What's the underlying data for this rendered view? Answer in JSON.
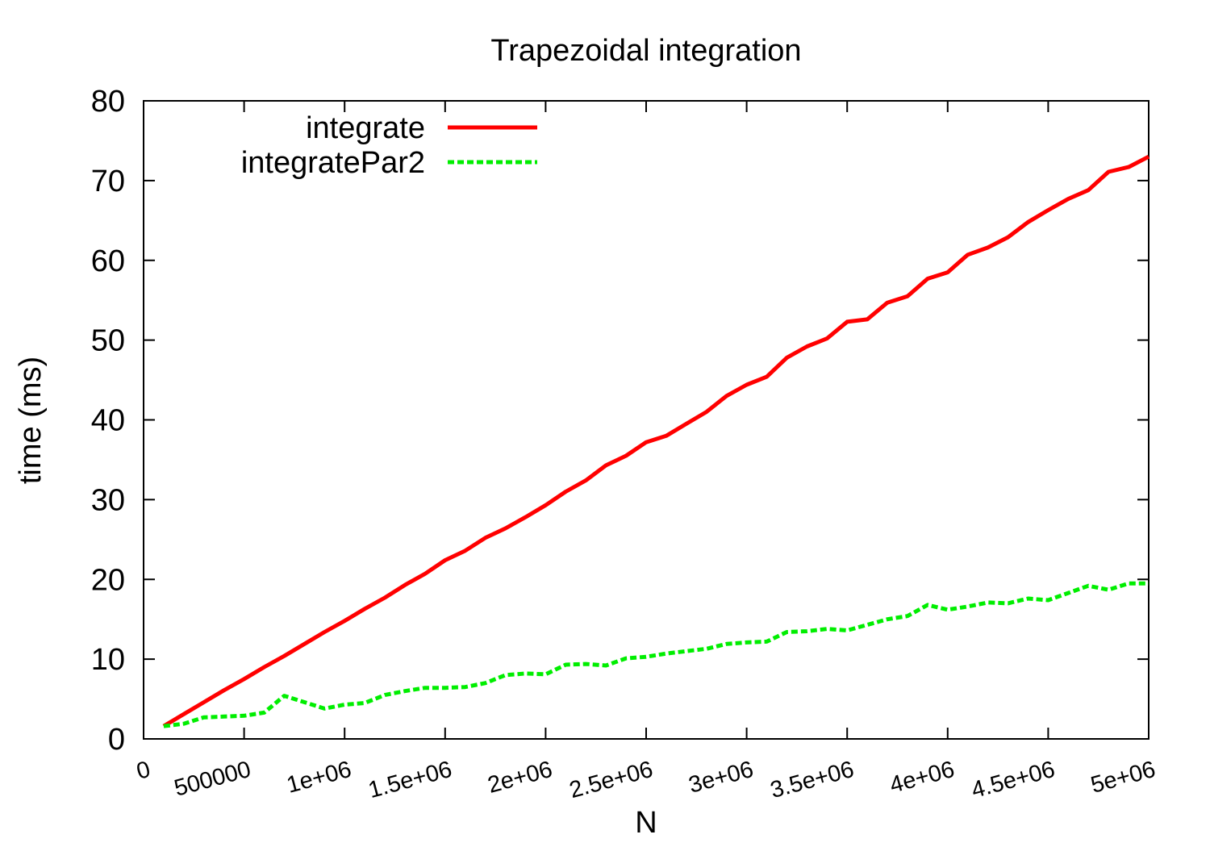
{
  "chart_data": {
    "type": "line",
    "title": "Trapezoidal integration",
    "xlabel": "N",
    "ylabel": "time (ms)",
    "xlim": [
      0,
      5000000
    ],
    "ylim": [
      0,
      80
    ],
    "grid": false,
    "legend_position": "top-left",
    "x_ticks": [
      0,
      500000,
      1000000,
      1500000,
      2000000,
      2500000,
      3000000,
      3500000,
      4000000,
      4500000,
      5000000
    ],
    "x_tick_labels": [
      "0",
      "500000",
      "1e+06",
      "1.5e+06",
      "2e+06",
      "2.5e+06",
      "3e+06",
      "3.5e+06",
      "4e+06",
      "4.5e+06",
      "5e+06"
    ],
    "y_ticks": [
      0,
      10,
      20,
      30,
      40,
      50,
      60,
      70,
      80
    ],
    "y_tick_labels": [
      "0",
      "10",
      "20",
      "30",
      "40",
      "50",
      "60",
      "70",
      "80"
    ],
    "x": [
      100000,
      200000,
      300000,
      400000,
      500000,
      600000,
      700000,
      800000,
      900000,
      1000000,
      1100000,
      1200000,
      1300000,
      1400000,
      1500000,
      1600000,
      1700000,
      1800000,
      1900000,
      2000000,
      2100000,
      2200000,
      2300000,
      2400000,
      2500000,
      2600000,
      2700000,
      2800000,
      2900000,
      3000000,
      3100000,
      3200000,
      3300000,
      3400000,
      3500000,
      3600000,
      3700000,
      3800000,
      3900000,
      4000000,
      4100000,
      4200000,
      4300000,
      4400000,
      4500000,
      4600000,
      4700000,
      4800000,
      4900000,
      5000000
    ],
    "series": [
      {
        "name": "integrate",
        "color": "#ff0000",
        "style": "solid",
        "values": [
          1.6,
          3.1,
          4.6,
          6.1,
          7.5,
          9.0,
          10.4,
          11.9,
          13.4,
          14.8,
          16.3,
          17.7,
          19.3,
          20.7,
          22.4,
          23.6,
          25.2,
          26.4,
          27.8,
          29.3,
          31.0,
          32.4,
          34.3,
          35.5,
          37.2,
          38.0,
          39.5,
          41.0,
          43.0,
          44.4,
          45.4,
          47.8,
          49.2,
          50.2,
          52.3,
          52.6,
          54.7,
          55.5,
          57.7,
          58.5,
          60.7,
          61.6,
          62.9,
          64.8,
          66.3,
          67.7,
          68.8,
          71.1,
          71.7,
          73.0
        ]
      },
      {
        "name": "integratePar2",
        "color": "#00ee00",
        "style": "dashed",
        "values": [
          1.6,
          1.9,
          2.7,
          2.8,
          2.9,
          3.3,
          5.4,
          4.6,
          3.8,
          4.3,
          4.5,
          5.5,
          6.0,
          6.4,
          6.4,
          6.5,
          7.0,
          8.0,
          8.2,
          8.1,
          9.3,
          9.4,
          9.2,
          10.1,
          10.3,
          10.7,
          11.0,
          11.3,
          11.9,
          12.1,
          12.2,
          13.4,
          13.5,
          13.8,
          13.6,
          14.3,
          15.0,
          15.4,
          16.8,
          16.2,
          16.6,
          17.1,
          17.0,
          17.6,
          17.4,
          18.3,
          19.2,
          18.7,
          19.5,
          19.5
        ]
      }
    ]
  }
}
